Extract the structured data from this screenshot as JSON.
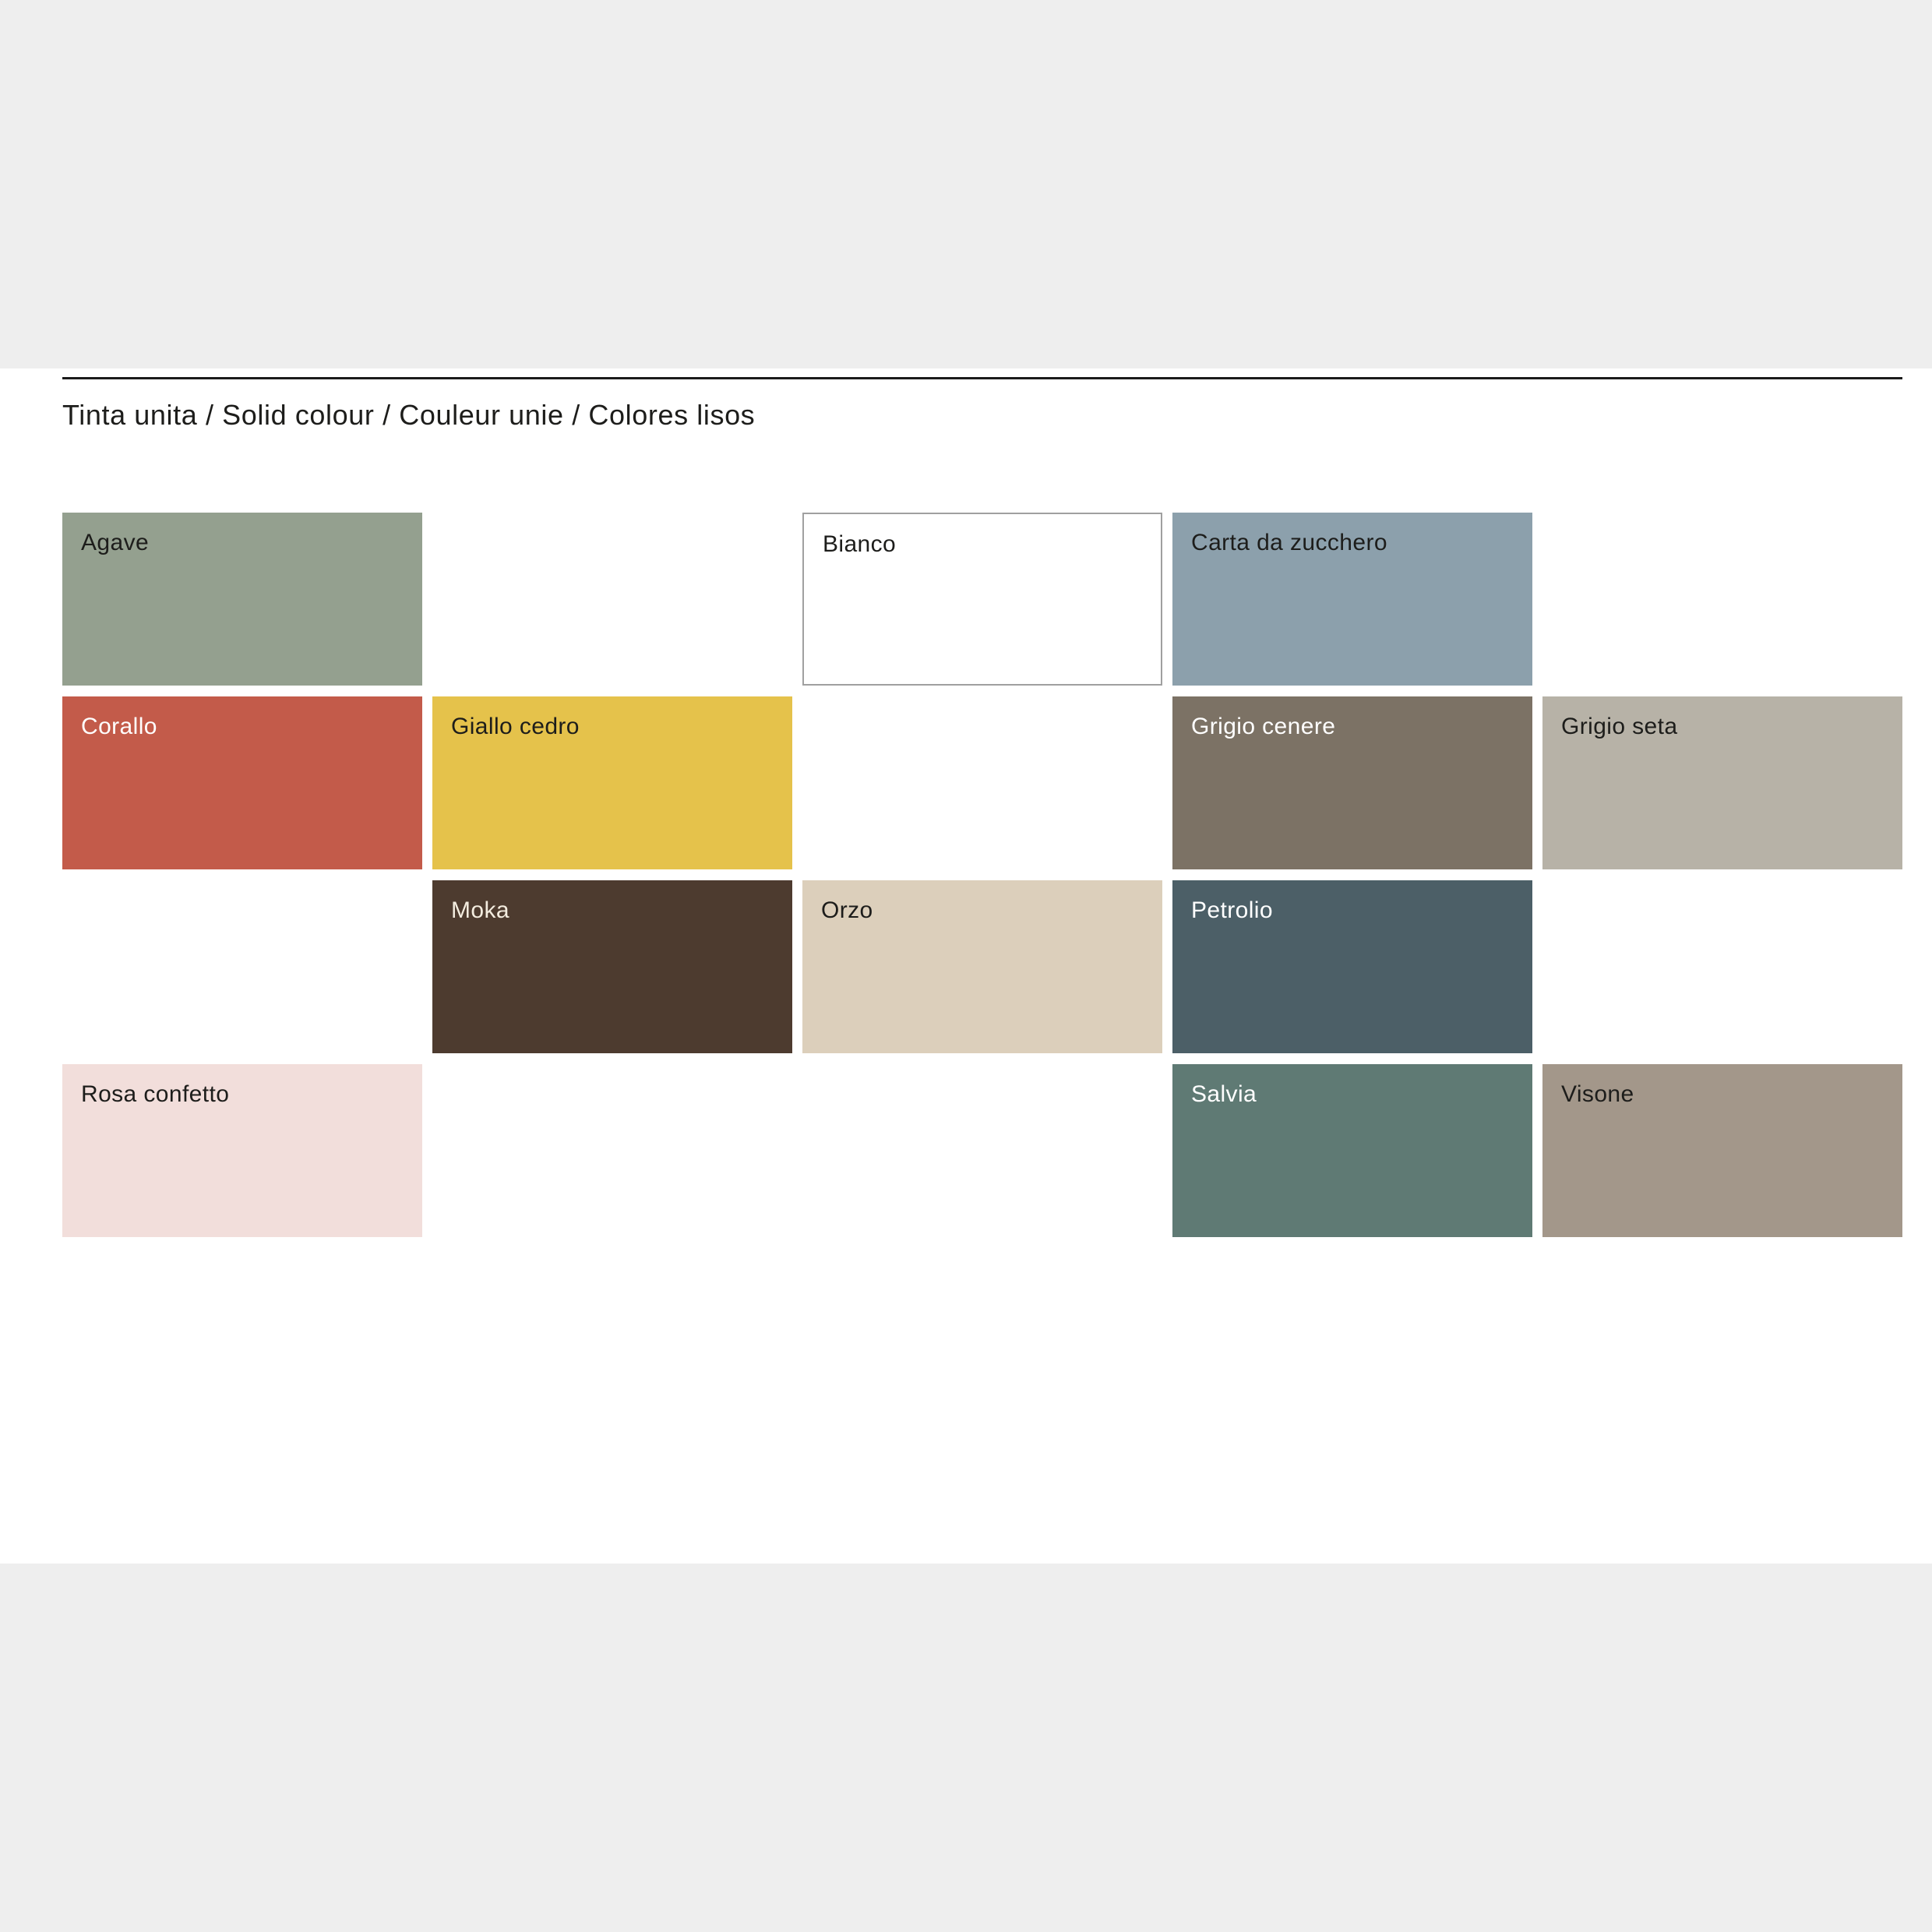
{
  "page": {
    "background": "#ffffff",
    "band_color": "#eeeeee"
  },
  "header": {
    "title": "Tinta unita / Solid colour / Couleur unie / Colores lisos",
    "text_color": "#1d1d1b",
    "divider_color": "#1b1b1b"
  },
  "swatch_grid": {
    "swatches": [
      {
        "label": "Agave",
        "color": "#94a08f",
        "text_color": "#1d1d1b",
        "row": 1,
        "col": 1
      },
      {
        "label": "Bianco",
        "color": "#ffffff",
        "text_color": "#1d1d1b",
        "row": 1,
        "col": 3,
        "border_color": "#a0a0a0"
      },
      {
        "label": "Carta da zucchero",
        "color": "#8ca0ac",
        "text_color": "#1d1d1b",
        "row": 1,
        "col": 4
      },
      {
        "label": "Corallo",
        "color": "#c35b4a",
        "text_color": "#ffffff",
        "row": 2,
        "col": 1
      },
      {
        "label": "Giallo cedro",
        "color": "#e5c24b",
        "text_color": "#1d1d1b",
        "row": 2,
        "col": 2
      },
      {
        "label": "Grigio cenere",
        "color": "#7c7265",
        "text_color": "#ffffff",
        "row": 2,
        "col": 4
      },
      {
        "label": "Grigio seta",
        "color": "#b7b2a7",
        "text_color": "#1d1d1b",
        "row": 2,
        "col": 5
      },
      {
        "label": "Moka",
        "color": "#4d3b2f",
        "text_color": "#f3ecdf",
        "row": 3,
        "col": 2
      },
      {
        "label": "Orzo",
        "color": "#dccfbb",
        "text_color": "#1d1d1b",
        "row": 3,
        "col": 3
      },
      {
        "label": "Petrolio",
        "color": "#4c5f67",
        "text_color": "#ffffff",
        "row": 3,
        "col": 4
      },
      {
        "label": "Rosa confetto",
        "color": "#f2dedb",
        "text_color": "#1d1d1b",
        "row": 4,
        "col": 1
      },
      {
        "label": "Salvia",
        "color": "#5f7a74",
        "text_color": "#ffffff",
        "row": 4,
        "col": 4
      },
      {
        "label": "Visone",
        "color": "#a3978a",
        "text_color": "#1d1d1b",
        "row": 4,
        "col": 5
      }
    ]
  }
}
